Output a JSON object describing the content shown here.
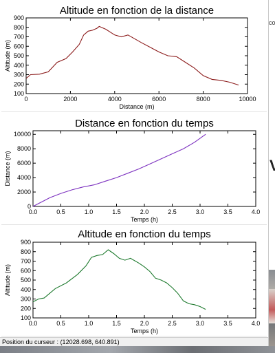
{
  "background": {
    "letter": "V",
    "top_snippet": "co"
  },
  "status_bar": {
    "label": "Position du curseur :",
    "value": "(12028.698, 640.891)"
  },
  "chart_data": [
    {
      "type": "line",
      "title": "Altitude en fonction de la distance",
      "xlabel": "Distance (m)",
      "ylabel": "Altitude (m)",
      "xlim": [
        0,
        10000
      ],
      "ylim": [
        100,
        900
      ],
      "xticks": [
        "0",
        "2000",
        "4000",
        "6000",
        "8000",
        "10000"
      ],
      "xtick_values": [
        0,
        2000,
        4000,
        6000,
        8000,
        10000
      ],
      "yticks": [
        "100",
        "200",
        "300",
        "400",
        "500",
        "600",
        "700",
        "800",
        "900"
      ],
      "ytick_values": [
        100,
        200,
        300,
        400,
        500,
        600,
        700,
        800,
        900
      ],
      "color": "#8b1a1a",
      "series": [
        {
          "x": [
            0,
            200,
            600,
            1000,
            1400,
            1800,
            2100,
            2400,
            2600,
            2800,
            3000,
            3200,
            3300,
            3600,
            4000,
            4300,
            4600,
            4900,
            5200,
            5600,
            6000,
            6400,
            6800,
            7200,
            7600,
            8000,
            8400,
            8800,
            9200,
            9600
          ],
          "y": [
            260,
            300,
            305,
            330,
            430,
            470,
            540,
            620,
            720,
            760,
            770,
            790,
            810,
            780,
            720,
            700,
            720,
            680,
            640,
            590,
            540,
            500,
            490,
            430,
            370,
            290,
            250,
            240,
            220,
            190
          ]
        }
      ]
    },
    {
      "type": "line",
      "title": "Distance en fonction du temps",
      "xlabel": "Temps (h)",
      "ylabel": "Distance (m)",
      "xlim": [
        0,
        4.0
      ],
      "ylim": [
        0,
        10500
      ],
      "xticks": [
        "0.0",
        "0.5",
        "1.0",
        "1.5",
        "2.0",
        "2.5",
        "3.0",
        "3.5",
        "4.0"
      ],
      "xtick_values": [
        0,
        0.5,
        1.0,
        1.5,
        2.0,
        2.5,
        3.0,
        3.5,
        4.0
      ],
      "yticks": [
        "0",
        "2000",
        "4000",
        "6000",
        "8000",
        "10000"
      ],
      "ytick_values": [
        0,
        2000,
        4000,
        6000,
        8000,
        10000
      ],
      "color": "#7b2fbf",
      "series": [
        {
          "x": [
            0,
            0.1,
            0.2,
            0.3,
            0.5,
            0.7,
            0.9,
            1.1,
            1.3,
            1.5,
            1.7,
            1.9,
            2.1,
            2.3,
            2.5,
            2.7,
            2.9,
            3.1
          ],
          "y": [
            0,
            400,
            800,
            1200,
            1800,
            2300,
            2700,
            3000,
            3500,
            4000,
            4600,
            5200,
            5900,
            6600,
            7300,
            8000,
            8900,
            10000
          ]
        }
      ]
    },
    {
      "type": "line",
      "title": "Altitude en fonction du temps",
      "xlabel": "Temps (h)",
      "ylabel": "Altitude (m)",
      "xlim": [
        0,
        4.0
      ],
      "ylim": [
        100,
        900
      ],
      "xticks": [
        "0.0",
        "0.5",
        "1.0",
        "1.5",
        "2.0",
        "2.5",
        "3.0",
        "3.5",
        "4.0"
      ],
      "xtick_values": [
        0,
        0.5,
        1.0,
        1.5,
        2.0,
        2.5,
        3.0,
        3.5,
        4.0
      ],
      "yticks": [
        "100",
        "200",
        "300",
        "400",
        "500",
        "600",
        "700",
        "800",
        "900"
      ],
      "ytick_values": [
        100,
        200,
        300,
        400,
        500,
        600,
        700,
        800,
        900
      ],
      "color": "#1e7a2e",
      "series": [
        {
          "x": [
            0,
            0.1,
            0.2,
            0.4,
            0.6,
            0.8,
            0.95,
            1.05,
            1.15,
            1.25,
            1.35,
            1.45,
            1.55,
            1.65,
            1.75,
            1.9,
            2.0,
            2.1,
            2.2,
            2.3,
            2.4,
            2.5,
            2.6,
            2.7,
            2.8,
            2.9,
            3.0,
            3.1
          ],
          "y": [
            270,
            300,
            310,
            410,
            470,
            560,
            650,
            740,
            760,
            770,
            820,
            780,
            730,
            710,
            730,
            680,
            640,
            590,
            520,
            500,
            470,
            420,
            360,
            280,
            250,
            240,
            220,
            190
          ]
        }
      ]
    }
  ]
}
